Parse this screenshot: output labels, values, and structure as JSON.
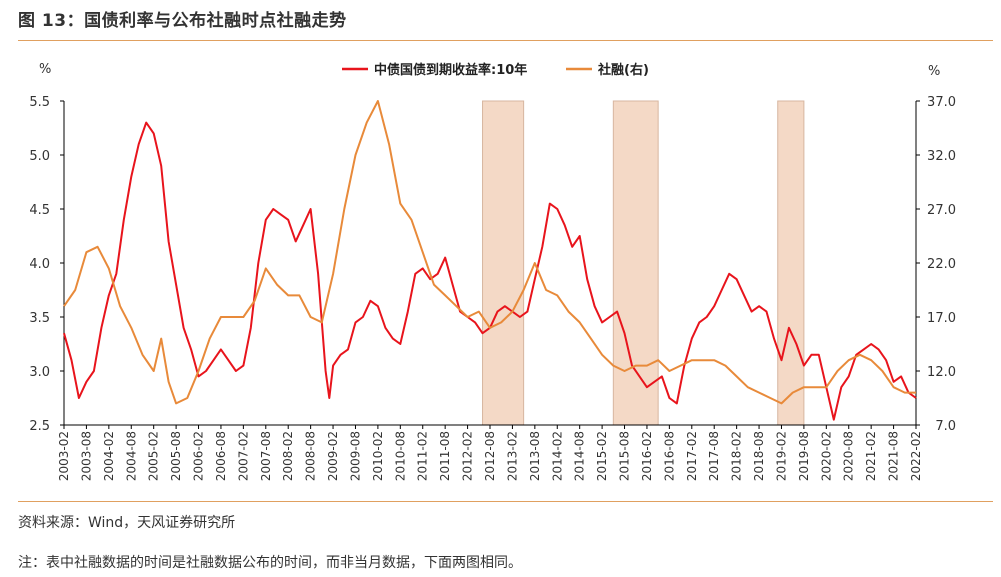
{
  "title": "图 13：国债利率与公布社融时点社融走势",
  "footer": {
    "source": "资料来源：Wind，天风证券研究所",
    "note": "注：表中社融数据的时间是社融数据公布的时间，而非当月数据，下面两图相同。"
  },
  "colors": {
    "bond_line": "#e8141c",
    "tsf_line": "#e88a3a",
    "shade": "#f4d9c6",
    "shade_border": "#d7b6a0",
    "axis": "#000000",
    "rule": "#e0a060"
  },
  "chart_data": {
    "type": "line",
    "left_axis": {
      "unit": "%",
      "ylim": [
        2.5,
        5.5
      ],
      "ticks": [
        "5.5",
        "5.0",
        "4.5",
        "4.0",
        "3.5",
        "3.0",
        "2.5"
      ]
    },
    "right_axis": {
      "unit": "%",
      "ylim": [
        7.0,
        37.0
      ],
      "ticks": [
        "37.0",
        "32.0",
        "27.0",
        "22.0",
        "17.0",
        "12.0",
        "7.0"
      ]
    },
    "x_tick_labels": [
      "2003-02",
      "2003-08",
      "2004-02",
      "2004-08",
      "2005-02",
      "2005-08",
      "2006-02",
      "2006-08",
      "2007-02",
      "2007-08",
      "2008-02",
      "2008-08",
      "2009-02",
      "2009-08",
      "2010-02",
      "2010-08",
      "2011-02",
      "2011-08",
      "2012-02",
      "2012-08",
      "2013-02",
      "2013-08",
      "2014-02",
      "2014-08",
      "2015-02",
      "2015-08",
      "2016-02",
      "2016-08",
      "2017-02",
      "2017-08",
      "2018-02",
      "2018-08",
      "2019-02",
      "2019-08",
      "2020-02",
      "2020-08",
      "2021-02",
      "2021-08",
      "2022-02"
    ],
    "shaded_periods": [
      [
        "2012-06",
        "2013-05"
      ],
      [
        "2015-05",
        "2016-05"
      ],
      [
        "2019-01",
        "2019-08"
      ]
    ],
    "series": [
      {
        "name": "中债国债到期收益率:10年",
        "axis": "left",
        "points": [
          [
            "2003-02",
            3.35
          ],
          [
            "2003-04",
            3.1
          ],
          [
            "2003-06",
            2.75
          ],
          [
            "2003-08",
            2.9
          ],
          [
            "2003-10",
            3.0
          ],
          [
            "2003-12",
            3.4
          ],
          [
            "2004-02",
            3.7
          ],
          [
            "2004-04",
            3.9
          ],
          [
            "2004-06",
            4.4
          ],
          [
            "2004-08",
            4.8
          ],
          [
            "2004-10",
            5.1
          ],
          [
            "2004-12",
            5.3
          ],
          [
            "2005-02",
            5.2
          ],
          [
            "2005-04",
            4.9
          ],
          [
            "2005-06",
            4.2
          ],
          [
            "2005-08",
            3.8
          ],
          [
            "2005-10",
            3.4
          ],
          [
            "2005-12",
            3.2
          ],
          [
            "2006-02",
            2.95
          ],
          [
            "2006-04",
            3.0
          ],
          [
            "2006-06",
            3.1
          ],
          [
            "2006-08",
            3.2
          ],
          [
            "2006-10",
            3.1
          ],
          [
            "2006-12",
            3.0
          ],
          [
            "2007-02",
            3.05
          ],
          [
            "2007-04",
            3.4
          ],
          [
            "2007-06",
            4.0
          ],
          [
            "2007-08",
            4.4
          ],
          [
            "2007-10",
            4.5
          ],
          [
            "2007-12",
            4.45
          ],
          [
            "2008-02",
            4.4
          ],
          [
            "2008-04",
            4.2
          ],
          [
            "2008-06",
            4.35
          ],
          [
            "2008-08",
            4.5
          ],
          [
            "2008-10",
            3.9
          ],
          [
            "2008-12",
            3.0
          ],
          [
            "2009-01",
            2.75
          ],
          [
            "2009-02",
            3.05
          ],
          [
            "2009-04",
            3.15
          ],
          [
            "2009-06",
            3.2
          ],
          [
            "2009-08",
            3.45
          ],
          [
            "2009-10",
            3.5
          ],
          [
            "2009-12",
            3.65
          ],
          [
            "2010-02",
            3.6
          ],
          [
            "2010-04",
            3.4
          ],
          [
            "2010-06",
            3.3
          ],
          [
            "2010-08",
            3.25
          ],
          [
            "2010-10",
            3.55
          ],
          [
            "2010-12",
            3.9
          ],
          [
            "2011-02",
            3.95
          ],
          [
            "2011-04",
            3.85
          ],
          [
            "2011-06",
            3.9
          ],
          [
            "2011-08",
            4.05
          ],
          [
            "2011-10",
            3.8
          ],
          [
            "2011-12",
            3.55
          ],
          [
            "2012-02",
            3.5
          ],
          [
            "2012-04",
            3.45
          ],
          [
            "2012-06",
            3.35
          ],
          [
            "2012-08",
            3.4
          ],
          [
            "2012-10",
            3.55
          ],
          [
            "2012-12",
            3.6
          ],
          [
            "2013-02",
            3.55
          ],
          [
            "2013-04",
            3.5
          ],
          [
            "2013-06",
            3.55
          ],
          [
            "2013-08",
            3.85
          ],
          [
            "2013-10",
            4.15
          ],
          [
            "2013-12",
            4.55
          ],
          [
            "2014-02",
            4.5
          ],
          [
            "2014-04",
            4.35
          ],
          [
            "2014-06",
            4.15
          ],
          [
            "2014-08",
            4.25
          ],
          [
            "2014-10",
            3.85
          ],
          [
            "2014-12",
            3.6
          ],
          [
            "2015-02",
            3.45
          ],
          [
            "2015-04",
            3.5
          ],
          [
            "2015-06",
            3.55
          ],
          [
            "2015-08",
            3.35
          ],
          [
            "2015-10",
            3.05
          ],
          [
            "2015-12",
            2.95
          ],
          [
            "2016-02",
            2.85
          ],
          [
            "2016-04",
            2.9
          ],
          [
            "2016-06",
            2.95
          ],
          [
            "2016-08",
            2.75
          ],
          [
            "2016-10",
            2.7
          ],
          [
            "2016-12",
            3.05
          ],
          [
            "2017-02",
            3.3
          ],
          [
            "2017-04",
            3.45
          ],
          [
            "2017-06",
            3.5
          ],
          [
            "2017-08",
            3.6
          ],
          [
            "2017-10",
            3.75
          ],
          [
            "2017-12",
            3.9
          ],
          [
            "2018-02",
            3.85
          ],
          [
            "2018-04",
            3.7
          ],
          [
            "2018-06",
            3.55
          ],
          [
            "2018-08",
            3.6
          ],
          [
            "2018-10",
            3.55
          ],
          [
            "2018-12",
            3.3
          ],
          [
            "2019-02",
            3.1
          ],
          [
            "2019-04",
            3.4
          ],
          [
            "2019-06",
            3.25
          ],
          [
            "2019-08",
            3.05
          ],
          [
            "2019-10",
            3.15
          ],
          [
            "2019-12",
            3.15
          ],
          [
            "2020-02",
            2.85
          ],
          [
            "2020-04",
            2.55
          ],
          [
            "2020-06",
            2.85
          ],
          [
            "2020-08",
            2.95
          ],
          [
            "2020-10",
            3.15
          ],
          [
            "2020-12",
            3.2
          ],
          [
            "2021-02",
            3.25
          ],
          [
            "2021-04",
            3.2
          ],
          [
            "2021-06",
            3.1
          ],
          [
            "2021-08",
            2.9
          ],
          [
            "2021-10",
            2.95
          ],
          [
            "2021-12",
            2.8
          ],
          [
            "2022-02",
            2.75
          ]
        ]
      },
      {
        "name": "社融(右)",
        "axis": "right",
        "points": [
          [
            "2003-02",
            18.0
          ],
          [
            "2003-05",
            19.5
          ],
          [
            "2003-08",
            23.0
          ],
          [
            "2003-11",
            23.5
          ],
          [
            "2004-02",
            21.5
          ],
          [
            "2004-05",
            18.0
          ],
          [
            "2004-08",
            16.0
          ],
          [
            "2004-11",
            13.5
          ],
          [
            "2005-02",
            12.0
          ],
          [
            "2005-04",
            15.0
          ],
          [
            "2005-06",
            11.0
          ],
          [
            "2005-08",
            9.0
          ],
          [
            "2005-11",
            9.5
          ],
          [
            "2006-02",
            12.0
          ],
          [
            "2006-05",
            15.0
          ],
          [
            "2006-08",
            17.0
          ],
          [
            "2006-11",
            17.0
          ],
          [
            "2007-02",
            17.0
          ],
          [
            "2007-05",
            18.5
          ],
          [
            "2007-08",
            21.5
          ],
          [
            "2007-11",
            20.0
          ],
          [
            "2008-02",
            19.0
          ],
          [
            "2008-05",
            19.0
          ],
          [
            "2008-08",
            17.0
          ],
          [
            "2008-11",
            16.5
          ],
          [
            "2009-02",
            21.0
          ],
          [
            "2009-05",
            27.0
          ],
          [
            "2009-08",
            32.0
          ],
          [
            "2009-11",
            35.0
          ],
          [
            "2010-02",
            37.0
          ],
          [
            "2010-05",
            33.0
          ],
          [
            "2010-08",
            27.5
          ],
          [
            "2010-11",
            26.0
          ],
          [
            "2011-02",
            23.0
          ],
          [
            "2011-05",
            20.0
          ],
          [
            "2011-08",
            19.0
          ],
          [
            "2011-11",
            18.0
          ],
          [
            "2012-02",
            17.0
          ],
          [
            "2012-05",
            17.5
          ],
          [
            "2012-08",
            16.0
          ],
          [
            "2012-11",
            16.5
          ],
          [
            "2013-02",
            17.5
          ],
          [
            "2013-05",
            19.5
          ],
          [
            "2013-08",
            22.0
          ],
          [
            "2013-11",
            19.5
          ],
          [
            "2014-02",
            19.0
          ],
          [
            "2014-05",
            17.5
          ],
          [
            "2014-08",
            16.5
          ],
          [
            "2014-11",
            15.0
          ],
          [
            "2015-02",
            13.5
          ],
          [
            "2015-05",
            12.5
          ],
          [
            "2015-08",
            12.0
          ],
          [
            "2015-11",
            12.5
          ],
          [
            "2016-02",
            12.5
          ],
          [
            "2016-05",
            13.0
          ],
          [
            "2016-08",
            12.0
          ],
          [
            "2016-11",
            12.5
          ],
          [
            "2017-02",
            13.0
          ],
          [
            "2017-05",
            13.0
          ],
          [
            "2017-08",
            13.0
          ],
          [
            "2017-11",
            12.5
          ],
          [
            "2018-02",
            11.5
          ],
          [
            "2018-05",
            10.5
          ],
          [
            "2018-08",
            10.0
          ],
          [
            "2018-11",
            9.5
          ],
          [
            "2019-02",
            9.0
          ],
          [
            "2019-05",
            10.0
          ],
          [
            "2019-08",
            10.5
          ],
          [
            "2019-11",
            10.5
          ],
          [
            "2020-02",
            10.5
          ],
          [
            "2020-05",
            12.0
          ],
          [
            "2020-08",
            13.0
          ],
          [
            "2020-11",
            13.5
          ],
          [
            "2021-02",
            13.0
          ],
          [
            "2021-05",
            12.0
          ],
          [
            "2021-08",
            10.5
          ],
          [
            "2021-11",
            10.0
          ],
          [
            "2022-02",
            10.0
          ]
        ]
      }
    ],
    "legend": "top-center"
  }
}
